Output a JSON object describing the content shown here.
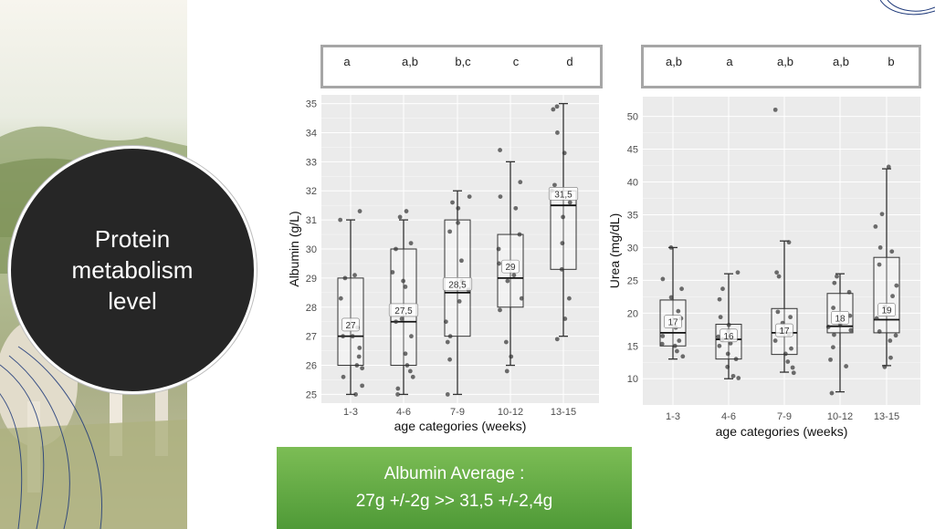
{
  "slide": {
    "title": "Protein metabolism level"
  },
  "albumin_letters": [
    "a",
    "a,b",
    "b,c",
    "c",
    "d"
  ],
  "urea_letters": [
    "a,b",
    "a",
    "a,b",
    "a,b",
    "b"
  ],
  "summary": {
    "line1": "Albumin Average :",
    "line2": "27g +/-2g >> 31,5 +/-2,4g"
  },
  "colors": {
    "panel_bg": "#ebebeb",
    "grid": "#ffffff",
    "box_border": "#333333",
    "points": "#333333",
    "summary_green": "#5ea83f",
    "circle": "#262626"
  },
  "chart_data": [
    {
      "type": "box",
      "xlabel": "age categories (weeks)",
      "ylabel": "Albumin (g/L)",
      "categories": [
        "1-3",
        "4-6",
        "7-9",
        "10-12",
        "13-15"
      ],
      "yticks": [
        25,
        26,
        27,
        28,
        29,
        30,
        31,
        32,
        33,
        34,
        35
      ],
      "ylim": [
        24.7,
        35.3
      ],
      "median_labels": [
        "27",
        "27,5",
        "28,5",
        "29",
        "31,5"
      ],
      "boxes": [
        {
          "min": 25,
          "q1": 26,
          "median": 27,
          "q3": 29,
          "max": 31,
          "mean": 27.4
        },
        {
          "min": 25,
          "q1": 26,
          "median": 27.5,
          "q3": 30,
          "max": 31,
          "mean": 27.9
        },
        {
          "min": 25,
          "q1": 27,
          "median": 28.5,
          "q3": 31,
          "max": 32,
          "mean": 28.8
        },
        {
          "min": 26,
          "q1": 28,
          "median": 29,
          "q3": 30.5,
          "max": 33,
          "mean": 29.4
        },
        {
          "min": 27,
          "q1": 29.3,
          "median": 31.5,
          "q3": 32,
          "max": 35,
          "mean": 31.9
        }
      ],
      "points": [
        [
          25,
          25.3,
          25.6,
          25.9,
          26,
          26.3,
          26.6,
          27,
          27,
          27.3,
          28.3,
          29,
          29.1,
          31,
          31.3
        ],
        [
          25,
          25.2,
          25.6,
          25.8,
          26,
          26.4,
          27,
          27.5,
          27.6,
          28.7,
          28.9,
          29.2,
          30,
          30.2,
          31.1,
          31.3
        ],
        [
          25,
          26.2,
          26.8,
          27,
          27.5,
          28.2,
          28.6,
          28.9,
          29.6,
          30.6,
          30.9,
          31.4,
          31.6,
          31.8
        ],
        [
          25.8,
          26.3,
          26.8,
          27.9,
          28.3,
          28.9,
          29.1,
          29.5,
          30,
          30.5,
          31.4,
          31.8,
          32.3,
          33.4
        ],
        [
          26.9,
          27.6,
          28.3,
          29.3,
          30.2,
          31.1,
          31.6,
          32,
          32.2,
          33.3,
          34,
          34.8,
          34.9
        ]
      ]
    },
    {
      "type": "box",
      "xlabel": "age categories (weeks)",
      "ylabel": "Urea (mg/dL)",
      "categories": [
        "1-3",
        "4-6",
        "7-9",
        "10-12",
        "13-15"
      ],
      "yticks": [
        10,
        15,
        20,
        25,
        30,
        35,
        40,
        45,
        50
      ],
      "ylim": [
        6,
        53
      ],
      "median_labels": [
        "17",
        "16",
        "17",
        "18",
        "19"
      ],
      "boxes": [
        {
          "min": 13,
          "q1": 15,
          "median": 17,
          "q3": 22,
          "max": 30,
          "mean": 18.7
        },
        {
          "min": 10,
          "q1": 13,
          "median": 16,
          "q3": 18.3,
          "max": 26,
          "mean": 16.6
        },
        {
          "min": 11,
          "q1": 13.7,
          "median": 17,
          "q3": 20.7,
          "max": 31,
          "mean": 17.4
        },
        {
          "min": 8,
          "q1": 17,
          "median": 18,
          "q3": 23,
          "max": 26,
          "mean": 19.3
        },
        {
          "min": 12,
          "q1": 17,
          "median": 19,
          "q3": 28.5,
          "max": 42,
          "mean": 20.5
        }
      ],
      "points": [
        [
          13.4,
          14.2,
          15,
          15.3,
          15.8,
          16.5,
          17.8,
          19.2,
          20.3,
          22.4,
          23.7,
          25.2,
          30
        ],
        [
          10.1,
          10.4,
          11.8,
          13,
          13.8,
          15,
          15.4,
          16,
          16.4,
          17.3,
          18.2,
          19.4,
          22.1,
          23.7,
          26.2
        ],
        [
          10.9,
          11.7,
          12.6,
          13.8,
          14.6,
          15.8,
          16.8,
          17.5,
          18.5,
          19.4,
          20.2,
          25.6,
          26.2,
          30.8,
          51
        ],
        [
          7.8,
          11.9,
          12.9,
          14.8,
          16.7,
          17.4,
          17.9,
          18.3,
          19.6,
          20.8,
          23.2,
          24.6,
          25.6
        ],
        [
          11.8,
          13.2,
          15.8,
          16.6,
          17.2,
          19.2,
          21,
          22.6,
          24.2,
          27.4,
          29.4,
          30,
          33.2,
          35.1,
          42.3
        ]
      ]
    }
  ]
}
